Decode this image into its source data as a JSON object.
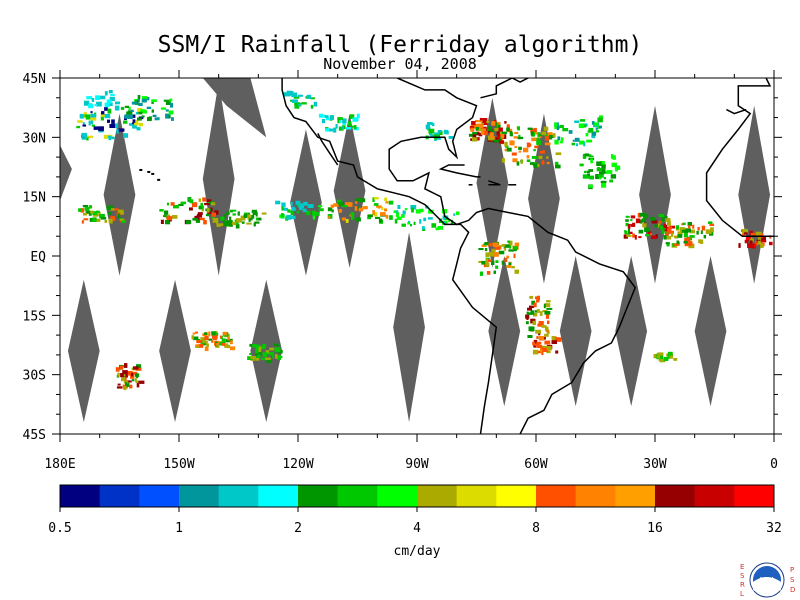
{
  "title": "SSM/I Rainfall (Ferriday algorithm)",
  "subtitle": "November 04, 2008",
  "map": {
    "projection": "equirectangular",
    "lon_range": [
      -180,
      0
    ],
    "lat_range": [
      -45,
      45
    ],
    "lat_labels": [
      "45N",
      "30N",
      "15N",
      "EQ",
      "15S",
      "30S",
      "45S"
    ],
    "lon_labels": [
      "180E",
      "150W",
      "120W",
      "90W",
      "60W",
      "30W",
      "0"
    ],
    "lat_values": [
      45,
      30,
      15,
      0,
      -15,
      -30,
      -45
    ],
    "lon_values": [
      -180,
      -150,
      -120,
      -90,
      -60,
      -30,
      0
    ],
    "no_data_color": "#5f5f5f",
    "coastline_color": "#000000"
  },
  "colorbar": {
    "unit": "cm/day",
    "tick_labels": [
      "0.5",
      "1",
      "2",
      "4",
      "8",
      "16",
      "32"
    ],
    "colors": [
      "#000080",
      "#0032c8",
      "#0050ff",
      "#00969b",
      "#00c8c8",
      "#00ffff",
      "#009600",
      "#00c800",
      "#00ff00",
      "#aaaa00",
      "#dcdc00",
      "#ffff00",
      "#ff5000",
      "#ff8200",
      "#ffa000",
      "#960000",
      "#c80000",
      "#ff0000"
    ]
  },
  "logo": {
    "left_letters": "ESRL",
    "right_letters": "PSD",
    "center_text": "NOAA"
  }
}
